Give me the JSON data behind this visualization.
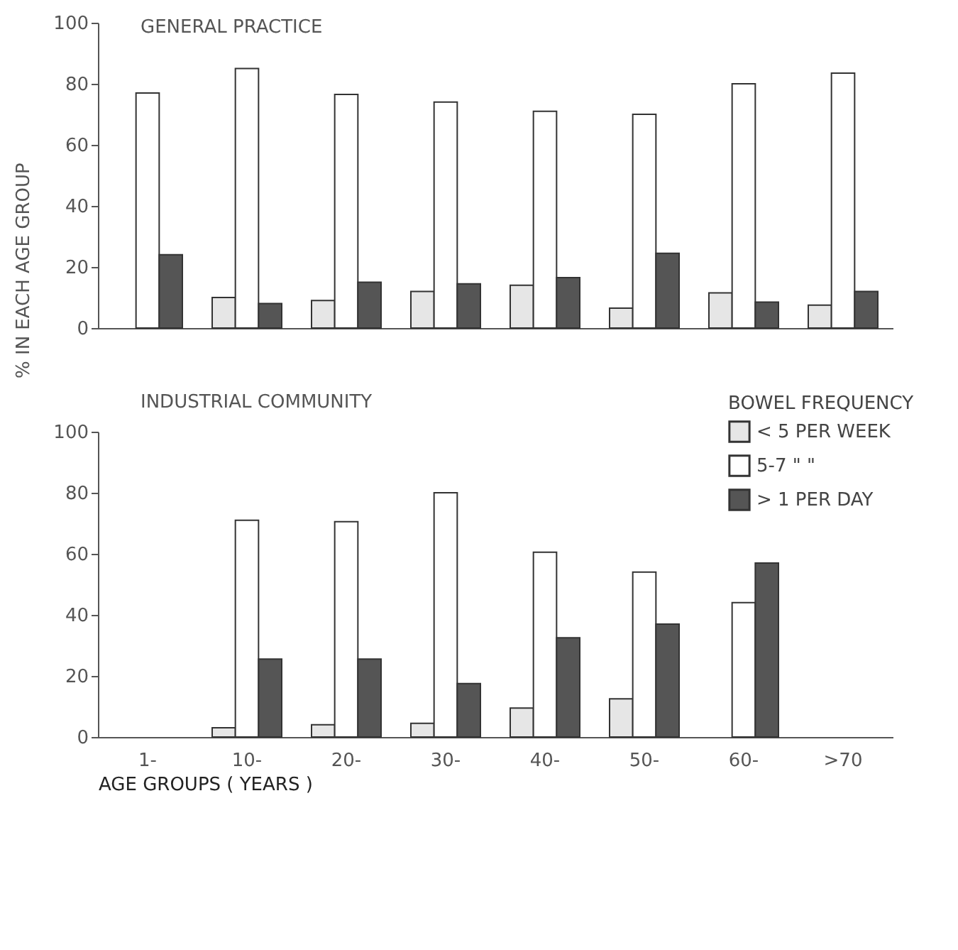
{
  "chart_data": [
    {
      "type": "bar",
      "title": "GENERAL PRACTICE",
      "ylabel": "% IN EACH AGE GROUP",
      "categories": [
        null,
        null,
        null,
        null,
        null,
        null,
        null,
        null
      ],
      "series": [
        {
          "color": "#e6e6e6",
          "values": [
            null,
            10,
            9,
            12,
            14,
            6.5,
            11.5,
            7.5
          ]
        },
        {
          "color": "#ffffff",
          "values": [
            77,
            85,
            76.5,
            74,
            71,
            70,
            80,
            83.5
          ]
        },
        {
          "color": "#555555",
          "values": [
            24,
            8,
            15,
            14.5,
            16.5,
            24.5,
            8.5,
            12
          ]
        }
      ],
      "ylim": [
        0,
        100
      ],
      "yticks": [
        0,
        20,
        40,
        60,
        80,
        100
      ],
      "grid": false,
      "legend": false,
      "tick_labels": "y"
    },
    {
      "type": "bar",
      "title": "INDUSTRIAL COMMUNITY",
      "xlabel": "AGE GROUPS ( YEARS )",
      "legend_title": "BOWEL FREQUENCY",
      "categories": [
        "1-",
        "10-",
        "20-",
        "30-",
        "40-",
        "50-",
        "60-",
        ">70"
      ],
      "series": [
        {
          "name": "< 5 PER WEEK",
          "color": "#e6e6e6",
          "values": [
            null,
            3,
            4,
            4.5,
            9.5,
            12.5,
            null,
            null
          ]
        },
        {
          "name": "5-7  \"   \"",
          "color": "#ffffff",
          "values": [
            null,
            71,
            70.5,
            80,
            60.5,
            54,
            44,
            null
          ]
        },
        {
          "name": "> 1 PER DAY",
          "color": "#555555",
          "values": [
            null,
            25.5,
            25.5,
            17.5,
            32.5,
            37,
            57,
            null
          ]
        }
      ],
      "ylim": [
        0,
        100
      ],
      "yticks": [
        0,
        20,
        40,
        60,
        80,
        100
      ],
      "grid": false,
      "legend": "top right"
    }
  ]
}
